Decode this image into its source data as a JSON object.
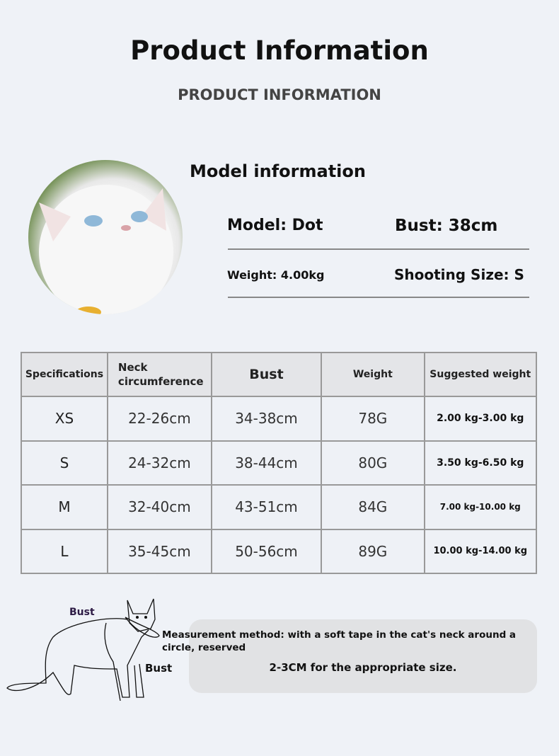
{
  "header": {
    "title": "Product Information",
    "subtitle": "PRODUCT INFORMATION"
  },
  "model": {
    "heading": "Model information",
    "name": "Model: Dot",
    "bust": "Bust: 38cm",
    "weight": "Weight: 4.00kg",
    "shooting_size": "Shooting Size: S"
  },
  "table": {
    "headers": [
      "Specifications",
      "Neck circumference",
      "Bust",
      "Weight",
      "Suggested weight"
    ],
    "rows": [
      [
        "XS",
        "22-26cm",
        "34-38cm",
        "78G",
        "2.00 kg-3.00 kg"
      ],
      [
        "S",
        "24-32cm",
        "38-44cm",
        "80G",
        "3.50 kg-6.50 kg"
      ],
      [
        "M",
        "32-40cm",
        "43-51cm",
        "84G",
        "7.00 kg-10.00 kg"
      ],
      [
        "L",
        "35-45cm",
        "50-56cm",
        "89G",
        "10.00 kg-14.00 kg"
      ]
    ]
  },
  "diagram": {
    "label_top": "Bust",
    "label_bottom": "Bust"
  },
  "note": {
    "line1": "Measurement method: with a soft tape in the cat's neck around a circle, reserved",
    "line2": "2-3CM for the appropriate size."
  }
}
